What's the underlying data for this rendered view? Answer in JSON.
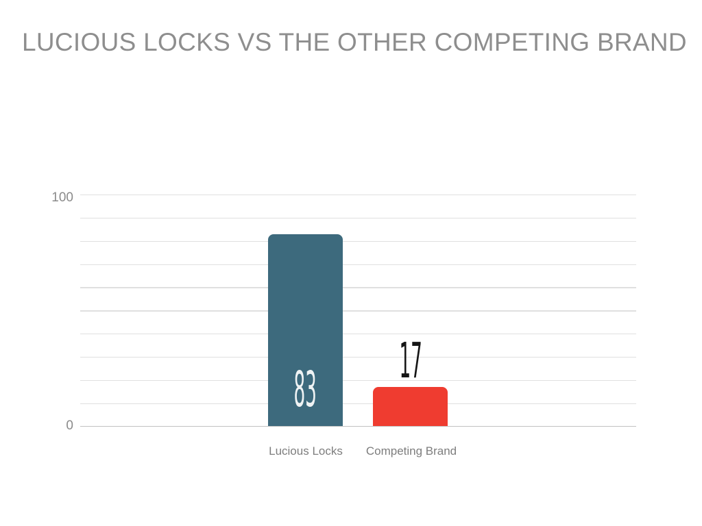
{
  "slide": {
    "background": "#ffffff"
  },
  "chart_data": {
    "type": "bar",
    "title": "LUCIOUS LOCKS VS THE OTHER COMPETING BRAND",
    "categories": [
      "Lucious Locks",
      "Competing Brand"
    ],
    "values": [
      83,
      17
    ],
    "bar_colors": [
      "#3d6a7d",
      "#ef3c30"
    ],
    "value_label_colors": [
      "#eff3f4",
      "#161616"
    ],
    "value_label_positions": [
      "inside-bottom",
      "above-bar"
    ],
    "xlabel": "",
    "ylabel": "",
    "ylim": [
      0,
      100
    ],
    "yticks": [
      {
        "value": 100,
        "label": "100"
      },
      {
        "value": 0,
        "label": "0"
      }
    ],
    "gridline_interval": 10,
    "grid": true,
    "legend": false,
    "colors": {
      "title": "#8e8e8e",
      "tick_label": "#8a8a8a",
      "category_label": "#7d7d7d",
      "gridline": "#e0e0e0",
      "axis_line": "#c2c2c2",
      "background": "#ffffff"
    }
  }
}
